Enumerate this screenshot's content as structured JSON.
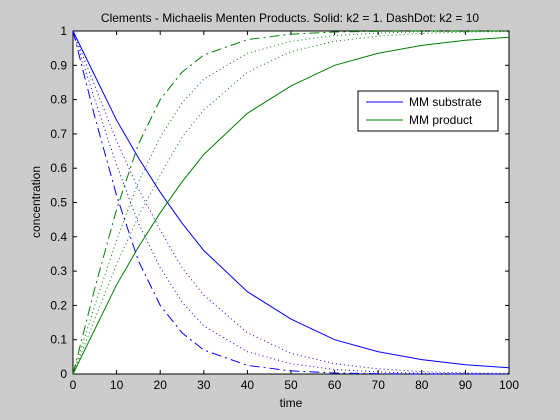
{
  "chart_data": {
    "type": "line",
    "title": "Clements - Michaelis Menten Products. Solid: k2 = 1. DashDot: k2 = 10",
    "xlabel": "time",
    "ylabel": "concentration",
    "xlim": [
      0,
      100
    ],
    "ylim": [
      0,
      1
    ],
    "xticks": [
      "0",
      "10",
      "20",
      "30",
      "40",
      "50",
      "60",
      "70",
      "80",
      "90",
      "100"
    ],
    "yticks": [
      "0",
      "0.1",
      "0.2",
      "0.3",
      "0.4",
      "0.5",
      "0.6",
      "0.7",
      "0.8",
      "0.9",
      "1"
    ],
    "grid": false,
    "legend_position": "top-right",
    "legend": [
      {
        "label": "MM substrate",
        "color": "#0000ff"
      },
      {
        "label": "MM product",
        "color": "#008000"
      }
    ],
    "x": [
      0,
      5,
      10,
      15,
      20,
      25,
      30,
      40,
      50,
      60,
      70,
      80,
      90,
      100
    ],
    "series": [
      {
        "style": "solid",
        "color": "#0000ff",
        "values": [
          1.0,
          0.87,
          0.74,
          0.63,
          0.53,
          0.44,
          0.36,
          0.24,
          0.16,
          0.1,
          0.065,
          0.042,
          0.027,
          0.018
        ]
      },
      {
        "style": "solid",
        "color": "#008000",
        "values": [
          0.0,
          0.13,
          0.26,
          0.37,
          0.47,
          0.56,
          0.64,
          0.76,
          0.84,
          0.9,
          0.935,
          0.958,
          0.973,
          0.982
        ]
      },
      {
        "style": "dashdot",
        "color": "#0000ff",
        "values": [
          1.0,
          0.75,
          0.52,
          0.33,
          0.2,
          0.12,
          0.07,
          0.025,
          0.009,
          0.003,
          0.001,
          0.0,
          0.0,
          0.0
        ]
      },
      {
        "style": "dashdot",
        "color": "#008000",
        "values": [
          0.0,
          0.25,
          0.48,
          0.67,
          0.8,
          0.88,
          0.93,
          0.975,
          0.991,
          0.997,
          0.999,
          1.0,
          1.0,
          1.0
        ]
      },
      {
        "style": "dotted",
        "color": "#0000ff",
        "values": [
          1.0,
          0.8,
          0.61,
          0.44,
          0.31,
          0.21,
          0.14,
          0.065,
          0.03,
          0.013,
          0.006,
          0.002,
          0.001,
          0.0
        ]
      },
      {
        "style": "dotted",
        "color": "#008000",
        "values": [
          0.0,
          0.2,
          0.39,
          0.56,
          0.69,
          0.79,
          0.86,
          0.935,
          0.97,
          0.987,
          0.994,
          0.998,
          0.999,
          1.0
        ]
      },
      {
        "style": "dotted",
        "color": "#0000ff",
        "values": [
          1.0,
          0.84,
          0.68,
          0.54,
          0.42,
          0.31,
          0.23,
          0.12,
          0.06,
          0.03,
          0.015,
          0.007,
          0.003,
          0.002
        ]
      },
      {
        "style": "dotted",
        "color": "#008000",
        "values": [
          0.0,
          0.16,
          0.32,
          0.46,
          0.58,
          0.69,
          0.77,
          0.88,
          0.94,
          0.97,
          0.985,
          0.993,
          0.997,
          0.998
        ]
      }
    ]
  }
}
